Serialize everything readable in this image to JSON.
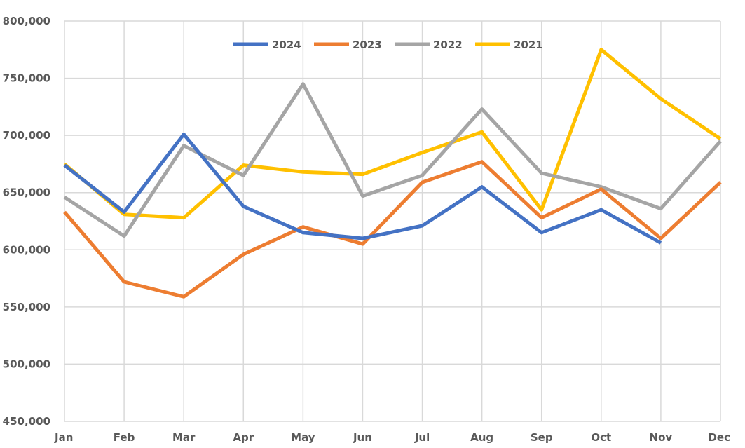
{
  "chart_data": {
    "type": "line",
    "title": "",
    "xlabel": "",
    "ylabel": "",
    "categories": [
      "Jan",
      "Feb",
      "Mar",
      "Apr",
      "May",
      "Jun",
      "Jul",
      "Aug",
      "Sep",
      "Oct",
      "Nov",
      "Dec"
    ],
    "ylim": [
      450000,
      800000
    ],
    "yticks": [
      450000,
      500000,
      550000,
      600000,
      650000,
      700000,
      750000,
      800000
    ],
    "ytick_labels": [
      "450,000",
      "500,000",
      "550,000",
      "600,000",
      "650,000",
      "700,000",
      "750,000",
      "800,000"
    ],
    "grid": true,
    "legend_position": "top",
    "series": [
      {
        "name": "2024",
        "color": "#4472C4",
        "values": [
          674000,
          633000,
          701000,
          638000,
          615000,
          610000,
          621000,
          655000,
          615000,
          635000,
          606000,
          null
        ]
      },
      {
        "name": "2023",
        "color": "#ED7D31",
        "values": [
          633000,
          572000,
          559000,
          596000,
          620000,
          605000,
          659000,
          677000,
          628000,
          653000,
          610000,
          659000
        ]
      },
      {
        "name": "2022",
        "color": "#A5A5A5",
        "values": [
          646000,
          612000,
          691000,
          665000,
          745000,
          647000,
          665000,
          723000,
          667000,
          655000,
          636000,
          695000
        ]
      },
      {
        "name": "2021",
        "color": "#FFC000",
        "values": [
          675000,
          631000,
          628000,
          674000,
          668000,
          666000,
          685000,
          703000,
          635000,
          775000,
          732000,
          697000
        ]
      }
    ]
  }
}
